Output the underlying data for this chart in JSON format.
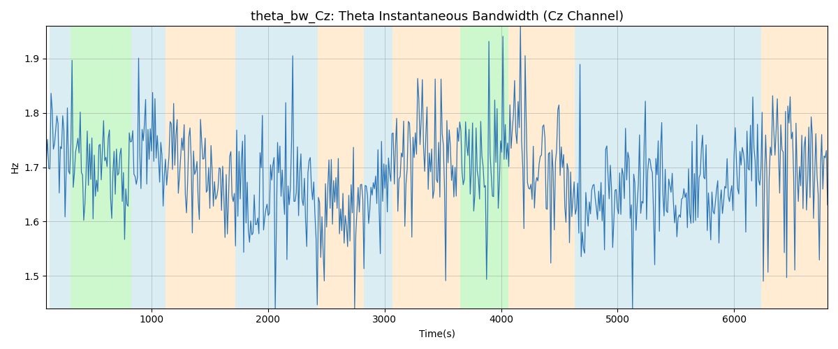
{
  "title": "theta_bw_Cz: Theta Instantaneous Bandwidth (Cz Channel)",
  "xlabel": "Time(s)",
  "ylabel": "Hz",
  "xlim": [
    100,
    6800
  ],
  "ylim": [
    1.44,
    1.96
  ],
  "yticks": [
    1.5,
    1.6,
    1.7,
    1.8,
    1.9
  ],
  "xticks": [
    1000,
    2000,
    3000,
    4000,
    5000,
    6000
  ],
  "line_color": "#2e75b6",
  "line_width": 0.9,
  "bg_bands": [
    {
      "xmin": 130,
      "xmax": 310,
      "color": "#add8e6",
      "alpha": 0.45
    },
    {
      "xmin": 310,
      "xmax": 830,
      "color": "#90ee90",
      "alpha": 0.45
    },
    {
      "xmin": 830,
      "xmax": 1120,
      "color": "#add8e6",
      "alpha": 0.45
    },
    {
      "xmin": 1120,
      "xmax": 1720,
      "color": "#ffd59e",
      "alpha": 0.45
    },
    {
      "xmin": 1720,
      "xmax": 2100,
      "color": "#add8e6",
      "alpha": 0.45
    },
    {
      "xmin": 2100,
      "xmax": 2430,
      "color": "#add8e6",
      "alpha": 0.45
    },
    {
      "xmin": 2430,
      "xmax": 2820,
      "color": "#ffd59e",
      "alpha": 0.45
    },
    {
      "xmin": 2820,
      "xmax": 3070,
      "color": "#add8e6",
      "alpha": 0.45
    },
    {
      "xmin": 3070,
      "xmax": 3650,
      "color": "#ffd59e",
      "alpha": 0.45
    },
    {
      "xmin": 3650,
      "xmax": 4060,
      "color": "#90ee90",
      "alpha": 0.45
    },
    {
      "xmin": 4060,
      "xmax": 4630,
      "color": "#ffd59e",
      "alpha": 0.45
    },
    {
      "xmin": 4630,
      "xmax": 6230,
      "color": "#add8e6",
      "alpha": 0.45
    },
    {
      "xmin": 6230,
      "xmax": 6800,
      "color": "#ffd59e",
      "alpha": 0.45
    }
  ],
  "seed": 12345,
  "n_points": 670,
  "mean_val": 1.685,
  "std_val": 0.055,
  "title_fontsize": 13,
  "figsize": [
    12,
    5
  ],
  "dpi": 100
}
